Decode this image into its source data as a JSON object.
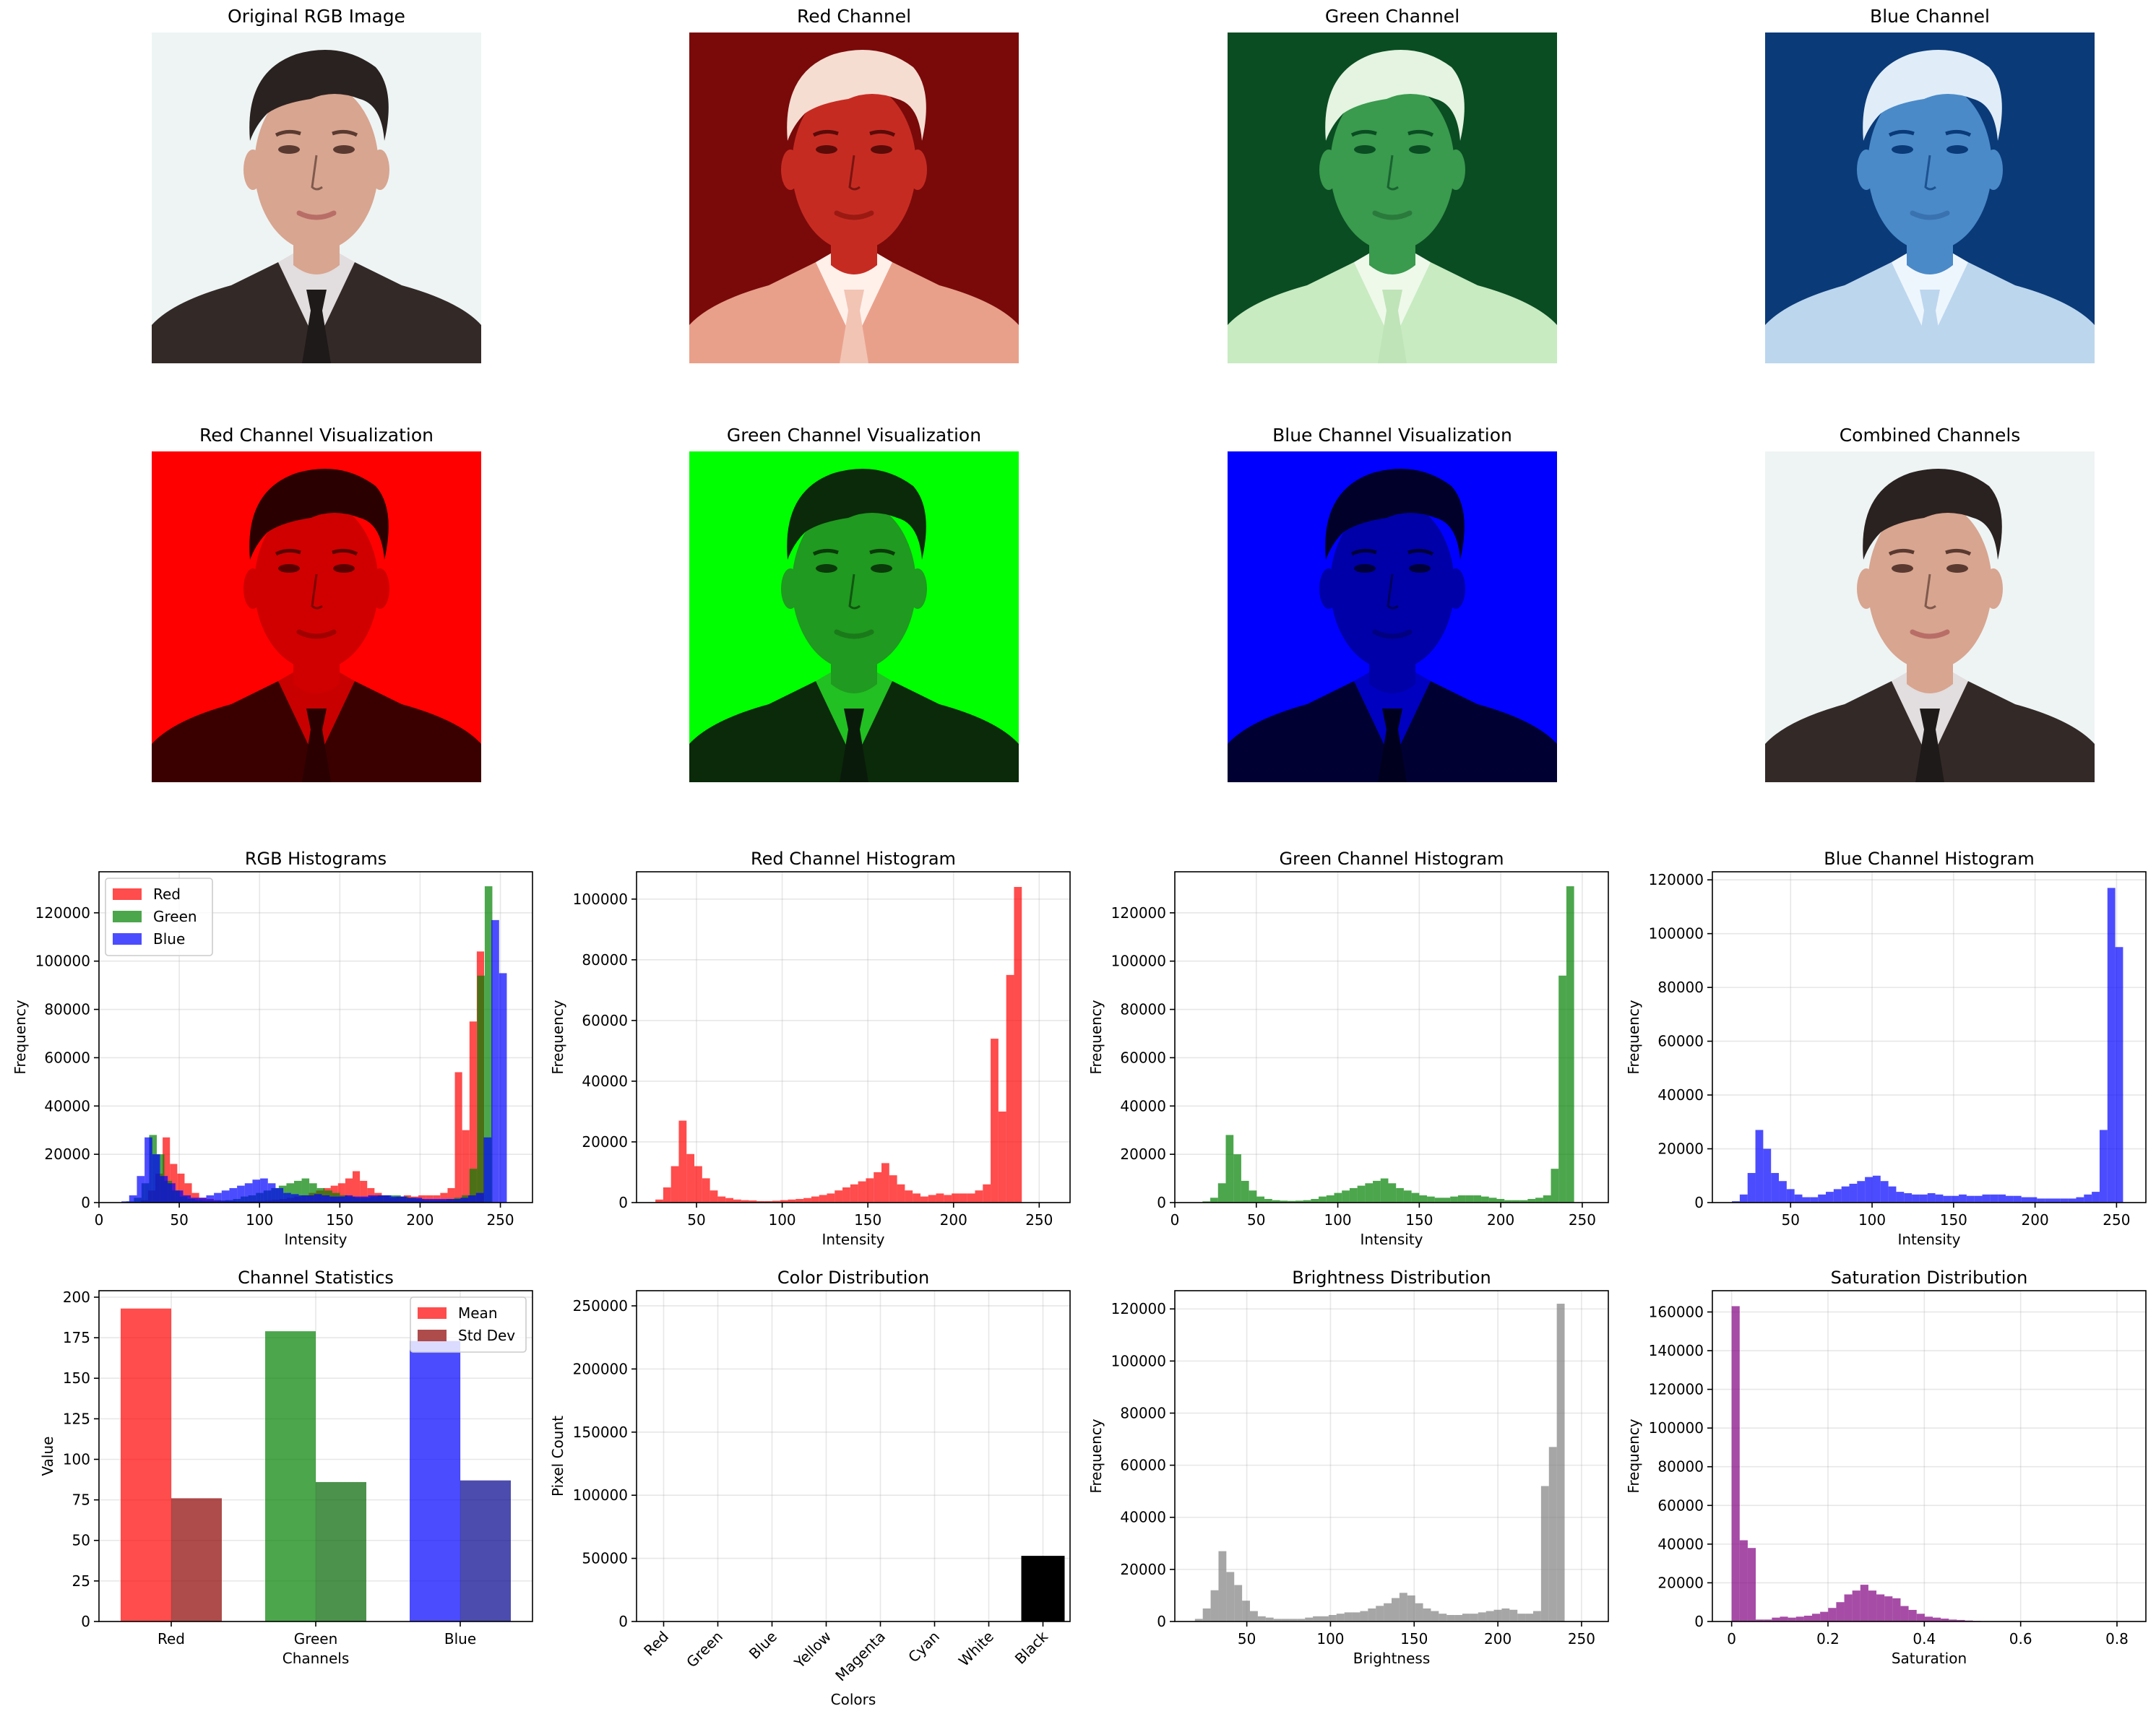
{
  "photos": [
    {
      "title": "Original RGB Image",
      "mode": "orig"
    },
    {
      "title": "Red Channel",
      "mode": "cmap-red"
    },
    {
      "title": "Green Channel",
      "mode": "cmap-green"
    },
    {
      "title": "Blue Channel",
      "mode": "cmap-blue"
    },
    {
      "title": "Red Channel Visualization",
      "mode": "vis-red"
    },
    {
      "title": "Green Channel Visualization",
      "mode": "vis-green"
    },
    {
      "title": "Blue Channel Visualization",
      "mode": "vis-blue"
    },
    {
      "title": "Combined Channels",
      "mode": "orig"
    }
  ],
  "chart_data": [
    {
      "id": "rgb-hist",
      "type": "bar",
      "title": "RGB Histograms",
      "xlabel": "Intensity",
      "ylabel": "Frequency",
      "xlim": [
        0,
        270
      ],
      "ylim": [
        0,
        137000
      ],
      "xticks": [
        0,
        50,
        100,
        150,
        200,
        250
      ],
      "yticks": [
        0,
        20000,
        40000,
        60000,
        80000,
        100000,
        120000
      ],
      "grid": true,
      "legend": "top-left",
      "series": [
        {
          "name": "Red",
          "color": "#ff0000",
          "alpha": 0.7,
          "x0": 26,
          "bin_width": 4.55,
          "values": [
            1000,
            5000,
            12000,
            27000,
            16000,
            12000,
            8000,
            4000,
            2000,
            1500,
            1000,
            800,
            700,
            500,
            500,
            600,
            800,
            1000,
            1200,
            1500,
            2000,
            2500,
            3000,
            4000,
            5000,
            6000,
            7000,
            8000,
            10000,
            13000,
            9000,
            6000,
            4000,
            3000,
            2000,
            2500,
            3000,
            2500,
            3000,
            3000,
            3000,
            4000,
            6000,
            54000,
            30000,
            75000,
            104000
          ]
        },
        {
          "name": "Green",
          "color": "#008000",
          "alpha": 0.7,
          "x0": 17,
          "bin_width": 4.75,
          "values": [
            500,
            2000,
            8000,
            28000,
            20000,
            9000,
            5000,
            2500,
            1500,
            1000,
            800,
            700,
            800,
            1000,
            1500,
            2500,
            3000,
            4000,
            5000,
            6000,
            7000,
            8000,
            9000,
            10000,
            8000,
            6000,
            5000,
            4000,
            3000,
            2500,
            2000,
            2000,
            2500,
            3000,
            3000,
            3000,
            2500,
            2000,
            1500,
            1000,
            1000,
            1000,
            1500,
            2000,
            3000,
            14000,
            94000,
            131000
          ]
        },
        {
          "name": "Blue",
          "color": "#0000ff",
          "alpha": 0.7,
          "x0": 14,
          "bin_width": 4.8,
          "values": [
            500,
            3000,
            11000,
            27000,
            20000,
            11000,
            8000,
            5000,
            3000,
            2000,
            2000,
            3000,
            4000,
            5000,
            6000,
            7000,
            8000,
            9500,
            10000,
            8000,
            6000,
            4000,
            3500,
            3000,
            3000,
            3500,
            3000,
            2500,
            2500,
            3000,
            2500,
            2500,
            3000,
            3000,
            3000,
            2500,
            2500,
            2000,
            2000,
            1500,
            1500,
            1500,
            1500,
            1500,
            2000,
            3000,
            4000,
            27000,
            117000,
            95000
          ]
        }
      ]
    },
    {
      "id": "red-hist",
      "type": "bar",
      "title": "Red Channel Histogram",
      "xlabel": "Intensity",
      "ylabel": "Frequency",
      "xlim": [
        15,
        268
      ],
      "ylim": [
        0,
        109000
      ],
      "xticks": [
        50,
        100,
        150,
        200,
        250
      ],
      "yticks": [
        0,
        20000,
        40000,
        60000,
        80000,
        100000
      ],
      "grid": true,
      "legend": "none",
      "series": [
        {
          "name": "",
          "color": "#ff0000",
          "alpha": 0.7,
          "x0": 26,
          "bin_width": 4.55,
          "values": [
            1000,
            5000,
            12000,
            27000,
            16000,
            12000,
            8000,
            4000,
            2000,
            1500,
            1000,
            800,
            700,
            500,
            500,
            600,
            800,
            1000,
            1200,
            1500,
            2000,
            2500,
            3000,
            4000,
            5000,
            6000,
            7000,
            8000,
            10000,
            13000,
            9000,
            6000,
            4000,
            3000,
            2000,
            2500,
            3000,
            2500,
            3000,
            3000,
            3000,
            4000,
            6000,
            54000,
            30000,
            75000,
            104000
          ]
        }
      ]
    },
    {
      "id": "green-hist",
      "type": "bar",
      "title": "Green Channel Histogram",
      "xlabel": "Intensity",
      "ylabel": "Frequency",
      "xlim": [
        0,
        266
      ],
      "ylim": [
        0,
        137000
      ],
      "xticks": [
        0,
        50,
        100,
        150,
        200,
        250
      ],
      "yticks": [
        0,
        20000,
        40000,
        60000,
        80000,
        100000,
        120000
      ],
      "grid": true,
      "legend": "none",
      "series": [
        {
          "name": "",
          "color": "#008000",
          "alpha": 0.7,
          "x0": 17,
          "bin_width": 4.75,
          "values": [
            500,
            2000,
            8000,
            28000,
            20000,
            9000,
            5000,
            2500,
            1500,
            1000,
            800,
            700,
            800,
            1000,
            1500,
            2500,
            3000,
            4000,
            5000,
            6000,
            7000,
            8000,
            9000,
            10000,
            8000,
            6000,
            5000,
            4000,
            3000,
            2500,
            2000,
            2000,
            2500,
            3000,
            3000,
            3000,
            2500,
            2000,
            1500,
            1000,
            1000,
            1000,
            1500,
            2000,
            3000,
            14000,
            94000,
            131000
          ]
        }
      ]
    },
    {
      "id": "blue-hist",
      "type": "bar",
      "title": "Blue Channel Histogram",
      "xlabel": "Intensity",
      "ylabel": "Frequency",
      "xlim": [
        2,
        268
      ],
      "ylim": [
        0,
        123000
      ],
      "xticks": [
        50,
        100,
        150,
        200,
        250
      ],
      "yticks": [
        0,
        20000,
        40000,
        60000,
        80000,
        100000,
        120000
      ],
      "grid": true,
      "legend": "none",
      "series": [
        {
          "name": "",
          "color": "#0000ff",
          "alpha": 0.7,
          "x0": 14,
          "bin_width": 4.8,
          "values": [
            500,
            3000,
            11000,
            27000,
            20000,
            11000,
            8000,
            5000,
            3000,
            2000,
            2000,
            3000,
            4000,
            5000,
            6000,
            7000,
            8000,
            9500,
            10000,
            8000,
            6000,
            4000,
            3500,
            3000,
            3000,
            3500,
            3000,
            2500,
            2500,
            3000,
            2500,
            2500,
            3000,
            3000,
            3000,
            2500,
            2500,
            2000,
            2000,
            1500,
            1500,
            1500,
            1500,
            1500,
            2000,
            3000,
            4000,
            27000,
            117000,
            95000
          ]
        }
      ]
    },
    {
      "id": "stats",
      "type": "bar",
      "title": "Channel Statistics",
      "xlabel": "Channels",
      "ylabel": "Value",
      "categories": [
        "Red",
        "Green",
        "Blue"
      ],
      "ylim": [
        0,
        204
      ],
      "yticks": [
        0,
        25,
        50,
        75,
        100,
        125,
        150,
        175,
        200
      ],
      "grid": true,
      "legend": "top-right",
      "series": [
        {
          "name": "Mean",
          "colors": [
            "#ff0000",
            "#008000",
            "#0000ff"
          ],
          "alpha": 0.7,
          "values": [
            193,
            179,
            173
          ]
        },
        {
          "name": "Std Dev",
          "colors": [
            "#8b0000",
            "#006400",
            "#00008b"
          ],
          "alpha": 0.7,
          "values": [
            76,
            86,
            87
          ]
        }
      ]
    },
    {
      "id": "color-dist",
      "type": "bar",
      "title": "Color Distribution",
      "xlabel": "Colors",
      "ylabel": "Pixel Count",
      "categories": [
        "Red",
        "Green",
        "Blue",
        "Yellow",
        "Magenta",
        "Cyan",
        "White",
        "Black"
      ],
      "colors": [
        "#ff0000",
        "#008000",
        "#0000ff",
        "#ffff00",
        "#ff00ff",
        "#00ffff",
        "#ffffff",
        "#000000"
      ],
      "values": [
        0,
        0,
        0,
        0,
        0,
        0,
        0,
        52000
      ],
      "ylim": [
        0,
        262000
      ],
      "yticks": [
        0,
        50000,
        100000,
        150000,
        200000,
        250000
      ],
      "grid": true,
      "legend": "none"
    },
    {
      "id": "brightness",
      "type": "bar",
      "title": "Brightness Distribution",
      "xlabel": "Brightness",
      "ylabel": "Frequency",
      "xlim": [
        7,
        266
      ],
      "ylim": [
        0,
        127000
      ],
      "xticks": [
        50,
        100,
        150,
        200,
        250
      ],
      "yticks": [
        0,
        20000,
        40000,
        60000,
        80000,
        100000,
        120000
      ],
      "grid": true,
      "legend": "none",
      "series": [
        {
          "name": "",
          "color": "#808080",
          "alpha": 0.7,
          "x0": 19,
          "bin_width": 4.7,
          "values": [
            1000,
            5000,
            12000,
            27000,
            19000,
            14000,
            8000,
            4000,
            2000,
            1500,
            1000,
            1000,
            1000,
            1000,
            1500,
            2000,
            2000,
            2500,
            3000,
            3500,
            3500,
            4000,
            5000,
            6000,
            7000,
            9000,
            11000,
            10000,
            7000,
            5000,
            4000,
            3000,
            2500,
            2500,
            3000,
            3000,
            3500,
            4000,
            4500,
            5000,
            4500,
            3000,
            3000,
            4000,
            52000,
            67000,
            122000
          ]
        }
      ]
    },
    {
      "id": "saturation",
      "type": "bar",
      "title": "Saturation Distribution",
      "xlabel": "Saturation",
      "ylabel": "Frequency",
      "xlim": [
        -0.04,
        0.86
      ],
      "ylim": [
        0,
        171000
      ],
      "xticks": [
        0.0,
        0.2,
        0.4,
        0.6,
        0.8
      ],
      "yticks": [
        0,
        20000,
        40000,
        60000,
        80000,
        100000,
        120000,
        140000,
        160000
      ],
      "grid": true,
      "legend": "none",
      "series": [
        {
          "name": "",
          "color": "#800080",
          "alpha": 0.7,
          "x0": 0,
          "bin_width": 0.0167,
          "values": [
            163000,
            42000,
            38000,
            1000,
            1000,
            2000,
            2500,
            2000,
            2500,
            3000,
            4000,
            5000,
            7000,
            10000,
            14000,
            16000,
            19000,
            16000,
            14000,
            13000,
            12000,
            8000,
            6000,
            4000,
            2500,
            2000,
            1500,
            1000,
            800,
            500,
            300,
            200,
            150,
            100,
            80,
            60,
            50,
            40,
            30,
            20,
            10,
            10,
            10,
            10,
            5,
            5,
            5,
            5,
            5,
            5
          ]
        }
      ]
    }
  ]
}
